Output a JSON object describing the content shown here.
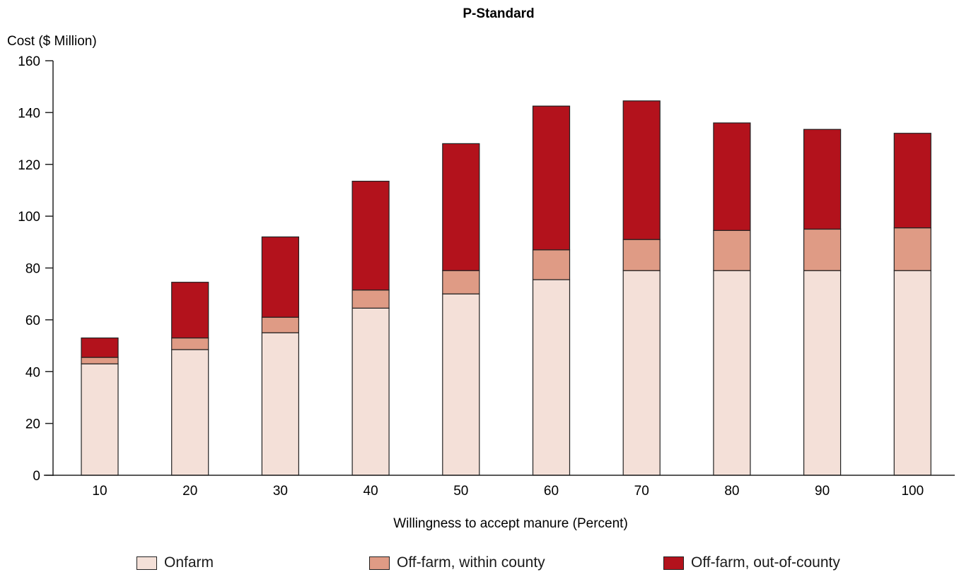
{
  "chart_data": {
    "type": "bar",
    "stacked": true,
    "title": "P-Standard",
    "ylabel": "Cost ($ Million)",
    "xlabel": "Willingness to accept manure (Percent)",
    "categories": [
      "10",
      "20",
      "30",
      "40",
      "50",
      "60",
      "70",
      "80",
      "90",
      "100"
    ],
    "ylim": [
      0,
      160
    ],
    "yticks": [
      "0",
      "20",
      "40",
      "60",
      "80",
      "100",
      "120",
      "140",
      "160"
    ],
    "grid": false,
    "legend_position": "bottom",
    "series": [
      {
        "name": "Onfarm",
        "color": "#f4e0d8",
        "values": [
          43,
          48.5,
          55,
          64.5,
          70,
          75.5,
          79,
          79,
          79,
          79
        ]
      },
      {
        "name": "Off-farm, within county",
        "color": "#df9b85",
        "values": [
          2.5,
          4.5,
          6,
          7,
          9,
          11.5,
          12,
          15.5,
          16,
          16.5
        ]
      },
      {
        "name": "Off-farm, out-of-county",
        "color": "#b3121c",
        "values": [
          7.5,
          21.5,
          31,
          42,
          49,
          55.5,
          53.5,
          41.5,
          38.5,
          36.5
        ]
      }
    ]
  }
}
